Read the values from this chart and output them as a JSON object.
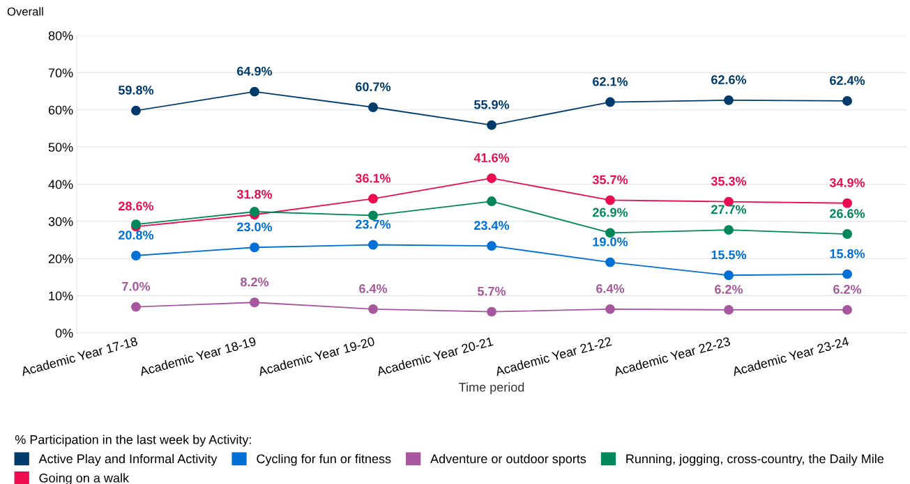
{
  "chart_data": {
    "type": "line",
    "title": "Overall",
    "xlabel": "Time period",
    "legend_title": "% Participation in the last week by Activity:",
    "categories": [
      "Academic Year 17-18",
      "Academic Year 18-19",
      "Academic Year 19-20",
      "Academic Year 20-21",
      "Academic Year 21-22",
      "Academic Year 22-23",
      "Academic Year 23-24"
    ],
    "series": [
      {
        "name": "Active Play and Informal Activity",
        "color": "#003b6b",
        "values": [
          59.8,
          64.9,
          60.7,
          55.9,
          62.1,
          62.6,
          62.4
        ],
        "value_labels": [
          "59.8%",
          "64.9%",
          "60.7%",
          "55.9%",
          "62.1%",
          "62.6%",
          "62.4%"
        ]
      },
      {
        "name": "Going on a walk",
        "color": "#eb0d4f",
        "values": [
          28.6,
          31.8,
          36.1,
          41.6,
          35.7,
          35.3,
          34.9
        ],
        "value_labels": [
          "28.6%",
          "31.8%",
          "36.1%",
          "41.6%",
          "35.7%",
          "35.3%",
          "34.9%"
        ]
      },
      {
        "name": "Cycling for fun or fitness",
        "color": "#006fd6",
        "values": [
          20.8,
          23.0,
          23.7,
          23.4,
          19.0,
          15.5,
          15.8
        ],
        "value_labels": [
          "20.8%",
          "23.0%",
          "23.7%",
          "23.4%",
          "19.0%",
          "15.5%",
          "15.8%"
        ]
      },
      {
        "name": "Adventure or outdoor sports",
        "color": "#a7579e",
        "values": [
          7.0,
          8.2,
          6.4,
          5.7,
          6.4,
          6.2,
          6.2
        ],
        "value_labels": [
          "7.0%",
          "8.2%",
          "6.4%",
          "5.7%",
          "6.4%",
          "6.2%",
          "6.2%"
        ]
      },
      {
        "name": "Running, jogging, cross-country, the Daily Mile",
        "color": "#00875a",
        "values": [
          29.2,
          32.6,
          31.6,
          35.4,
          26.9,
          27.7,
          26.6
        ],
        "value_labels": [
          null,
          null,
          null,
          null,
          "26.9%",
          "27.7%",
          "26.6%"
        ]
      }
    ],
    "ylim": [
      0,
      80
    ],
    "yticks": [
      {
        "value": 0,
        "label": "0%"
      },
      {
        "value": 10,
        "label": "10%"
      },
      {
        "value": 20,
        "label": "20%"
      },
      {
        "value": 30,
        "label": "30%"
      },
      {
        "value": 40,
        "label": "40%"
      },
      {
        "value": 50,
        "label": "50%"
      },
      {
        "value": 60,
        "label": "60%"
      },
      {
        "value": 70,
        "label": "70%"
      },
      {
        "value": 80,
        "label": "80%"
      }
    ],
    "grid": "y",
    "legend": "bottom",
    "marker": "circle",
    "line_style": "solid"
  }
}
